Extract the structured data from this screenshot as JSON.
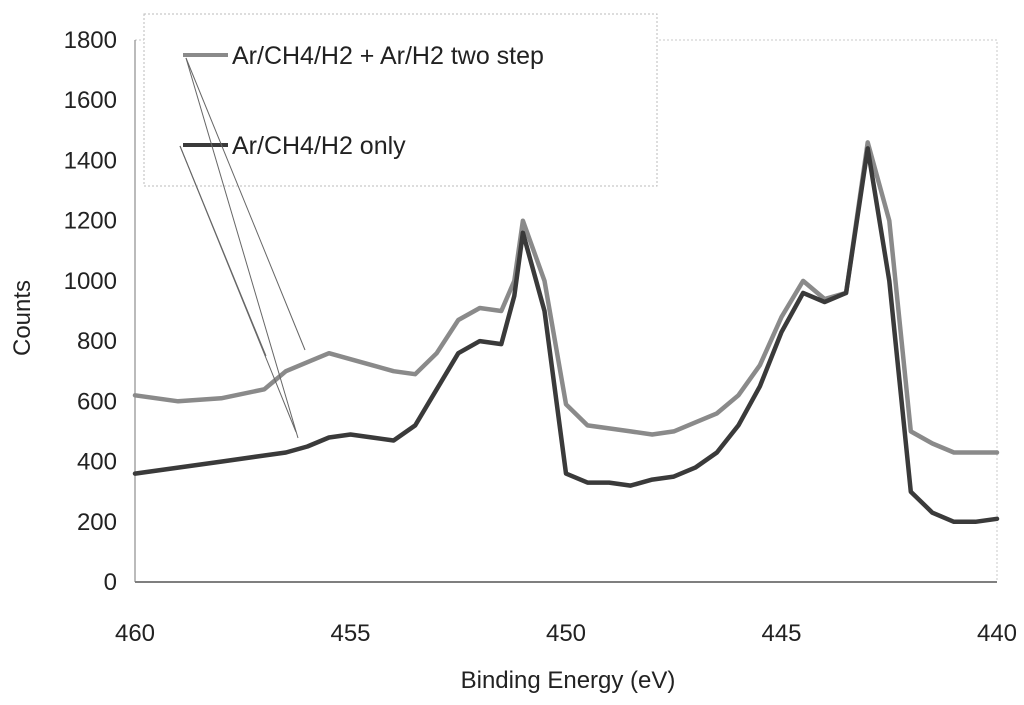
{
  "chart_data": {
    "type": "line",
    "title": "",
    "xlabel": "Binding Energy (eV)",
    "ylabel": "Counts",
    "xlim": [
      460,
      440
    ],
    "ylim": [
      0,
      1800
    ],
    "x_reversed": true,
    "x_ticks": [
      460,
      455,
      450,
      445,
      440
    ],
    "y_ticks": [
      0,
      200,
      400,
      600,
      800,
      1000,
      1200,
      1400,
      1600,
      1800
    ],
    "grid": false,
    "legend_position": "top-left",
    "series": [
      {
        "name": "Ar/CH4/H2 + Ar/H2 two step",
        "color": "#8a8a8a",
        "x": [
          460,
          459,
          458,
          457,
          456.5,
          456,
          455.5,
          455,
          454.5,
          454,
          453.5,
          453,
          452.5,
          452,
          451.5,
          451.2,
          451,
          450.5,
          450,
          449.5,
          449,
          448.5,
          448,
          447.5,
          447,
          446.5,
          446,
          445.5,
          445,
          444.5,
          444,
          443.5,
          443,
          442.5,
          442,
          441.5,
          441,
          440.5,
          440
        ],
        "y": [
          620,
          600,
          610,
          640,
          700,
          730,
          760,
          740,
          720,
          700,
          690,
          760,
          870,
          910,
          900,
          1000,
          1200,
          1000,
          590,
          520,
          510,
          500,
          490,
          500,
          530,
          560,
          620,
          720,
          880,
          1000,
          940,
          960,
          1460,
          1200,
          500,
          460,
          430,
          430,
          430
        ]
      },
      {
        "name": "Ar/CH4/H2 only",
        "color": "#3a3a3a",
        "x": [
          460,
          459,
          458,
          457,
          456.5,
          456,
          455.5,
          455,
          454.5,
          454,
          453.5,
          453,
          452.5,
          452,
          451.5,
          451.2,
          451,
          450.5,
          450,
          449.5,
          449,
          448.5,
          448,
          447.5,
          447,
          446.5,
          446,
          445.5,
          445,
          444.5,
          444,
          443.5,
          443,
          442.5,
          442,
          441.5,
          441,
          440.5,
          440
        ],
        "y": [
          360,
          380,
          400,
          420,
          430,
          450,
          480,
          490,
          480,
          470,
          520,
          640,
          760,
          800,
          790,
          950,
          1160,
          900,
          360,
          330,
          330,
          320,
          340,
          350,
          380,
          430,
          520,
          650,
          830,
          960,
          930,
          960,
          1440,
          1000,
          300,
          230,
          200,
          200,
          210
        ]
      }
    ]
  }
}
